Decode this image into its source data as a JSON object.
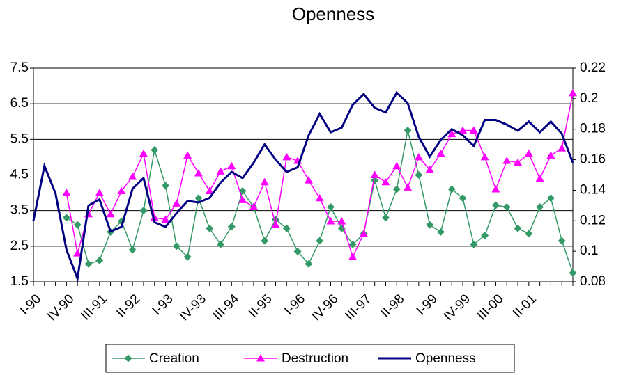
{
  "chart_data": {
    "type": "line",
    "title": "Openness",
    "categories": [
      "I-90",
      null,
      null,
      "IV-90",
      null,
      null,
      "III-91",
      null,
      null,
      "II-92",
      null,
      null,
      "I-93",
      null,
      null,
      "IV-93",
      null,
      null,
      "III-94",
      null,
      null,
      "II-95",
      null,
      null,
      "I-96",
      null,
      null,
      "IV-96",
      null,
      null,
      "III-97",
      null,
      null,
      "II-98",
      null,
      null,
      "I-99",
      null,
      null,
      "IV-99",
      null,
      null,
      "III-00",
      null,
      null,
      "II-01",
      null,
      null,
      null,
      null
    ],
    "series": [
      {
        "name": "Creation",
        "color": "#339966",
        "marker": "diamond",
        "axis": "y",
        "values": [
          null,
          null,
          null,
          3.3,
          3.1,
          2.0,
          2.1,
          2.9,
          3.2,
          2.4,
          3.5,
          5.2,
          4.2,
          2.5,
          2.2,
          3.85,
          3.0,
          2.55,
          3.05,
          4.05,
          3.6,
          2.65,
          3.25,
          3.0,
          2.35,
          2.0,
          2.65,
          3.6,
          3.0,
          2.55,
          2.85,
          4.35,
          3.3,
          4.1,
          5.75,
          4.5,
          3.1,
          2.9,
          4.1,
          3.85,
          2.55,
          2.8,
          3.65,
          3.6,
          3.0,
          2.85,
          3.6,
          3.85,
          2.65,
          1.75
        ]
      },
      {
        "name": "Destruction",
        "color": "#ff00ff",
        "marker": "triangle",
        "axis": "y",
        "values": [
          null,
          null,
          null,
          4.0,
          2.3,
          3.4,
          4.0,
          3.4,
          4.05,
          4.45,
          5.1,
          3.3,
          3.25,
          3.7,
          5.05,
          4.55,
          4.05,
          4.6,
          4.75,
          3.8,
          3.6,
          4.3,
          3.1,
          5.0,
          4.9,
          4.35,
          3.85,
          3.2,
          3.2,
          2.2,
          2.85,
          4.5,
          4.3,
          4.75,
          4.15,
          5.0,
          4.65,
          5.1,
          5.65,
          5.75,
          5.75,
          5.0,
          4.1,
          4.9,
          4.85,
          5.1,
          4.4,
          5.05,
          5.25,
          6.8
        ]
      },
      {
        "name": "Openness",
        "color": "#000080",
        "marker": "none",
        "axis": "y2",
        "values": [
          0.12,
          0.156,
          0.138,
          0.101,
          0.082,
          0.13,
          0.134,
          0.113,
          0.116,
          0.141,
          0.148,
          0.119,
          0.116,
          0.125,
          0.133,
          0.132,
          0.135,
          0.145,
          0.152,
          0.148,
          0.158,
          0.17,
          0.16,
          0.152,
          0.155,
          0.176,
          0.19,
          0.178,
          0.181,
          0.196,
          0.203,
          0.194,
          0.191,
          0.204,
          0.197,
          0.175,
          0.162,
          0.173,
          0.18,
          0.176,
          0.169,
          0.186,
          0.186,
          0.183,
          0.179,
          0.185,
          0.178,
          0.185,
          0.177,
          0.158
        ]
      }
    ],
    "ylim": [
      1.5,
      7.5
    ],
    "yticks": [
      1.5,
      2.5,
      3.5,
      4.5,
      5.5,
      6.5,
      7.5
    ],
    "y2lim": [
      0.08,
      0.22
    ],
    "y2ticks": [
      0.08,
      0.1,
      0.12,
      0.14,
      0.16,
      0.18,
      0.2,
      0.22
    ],
    "grid": true,
    "legend": "bottom"
  }
}
